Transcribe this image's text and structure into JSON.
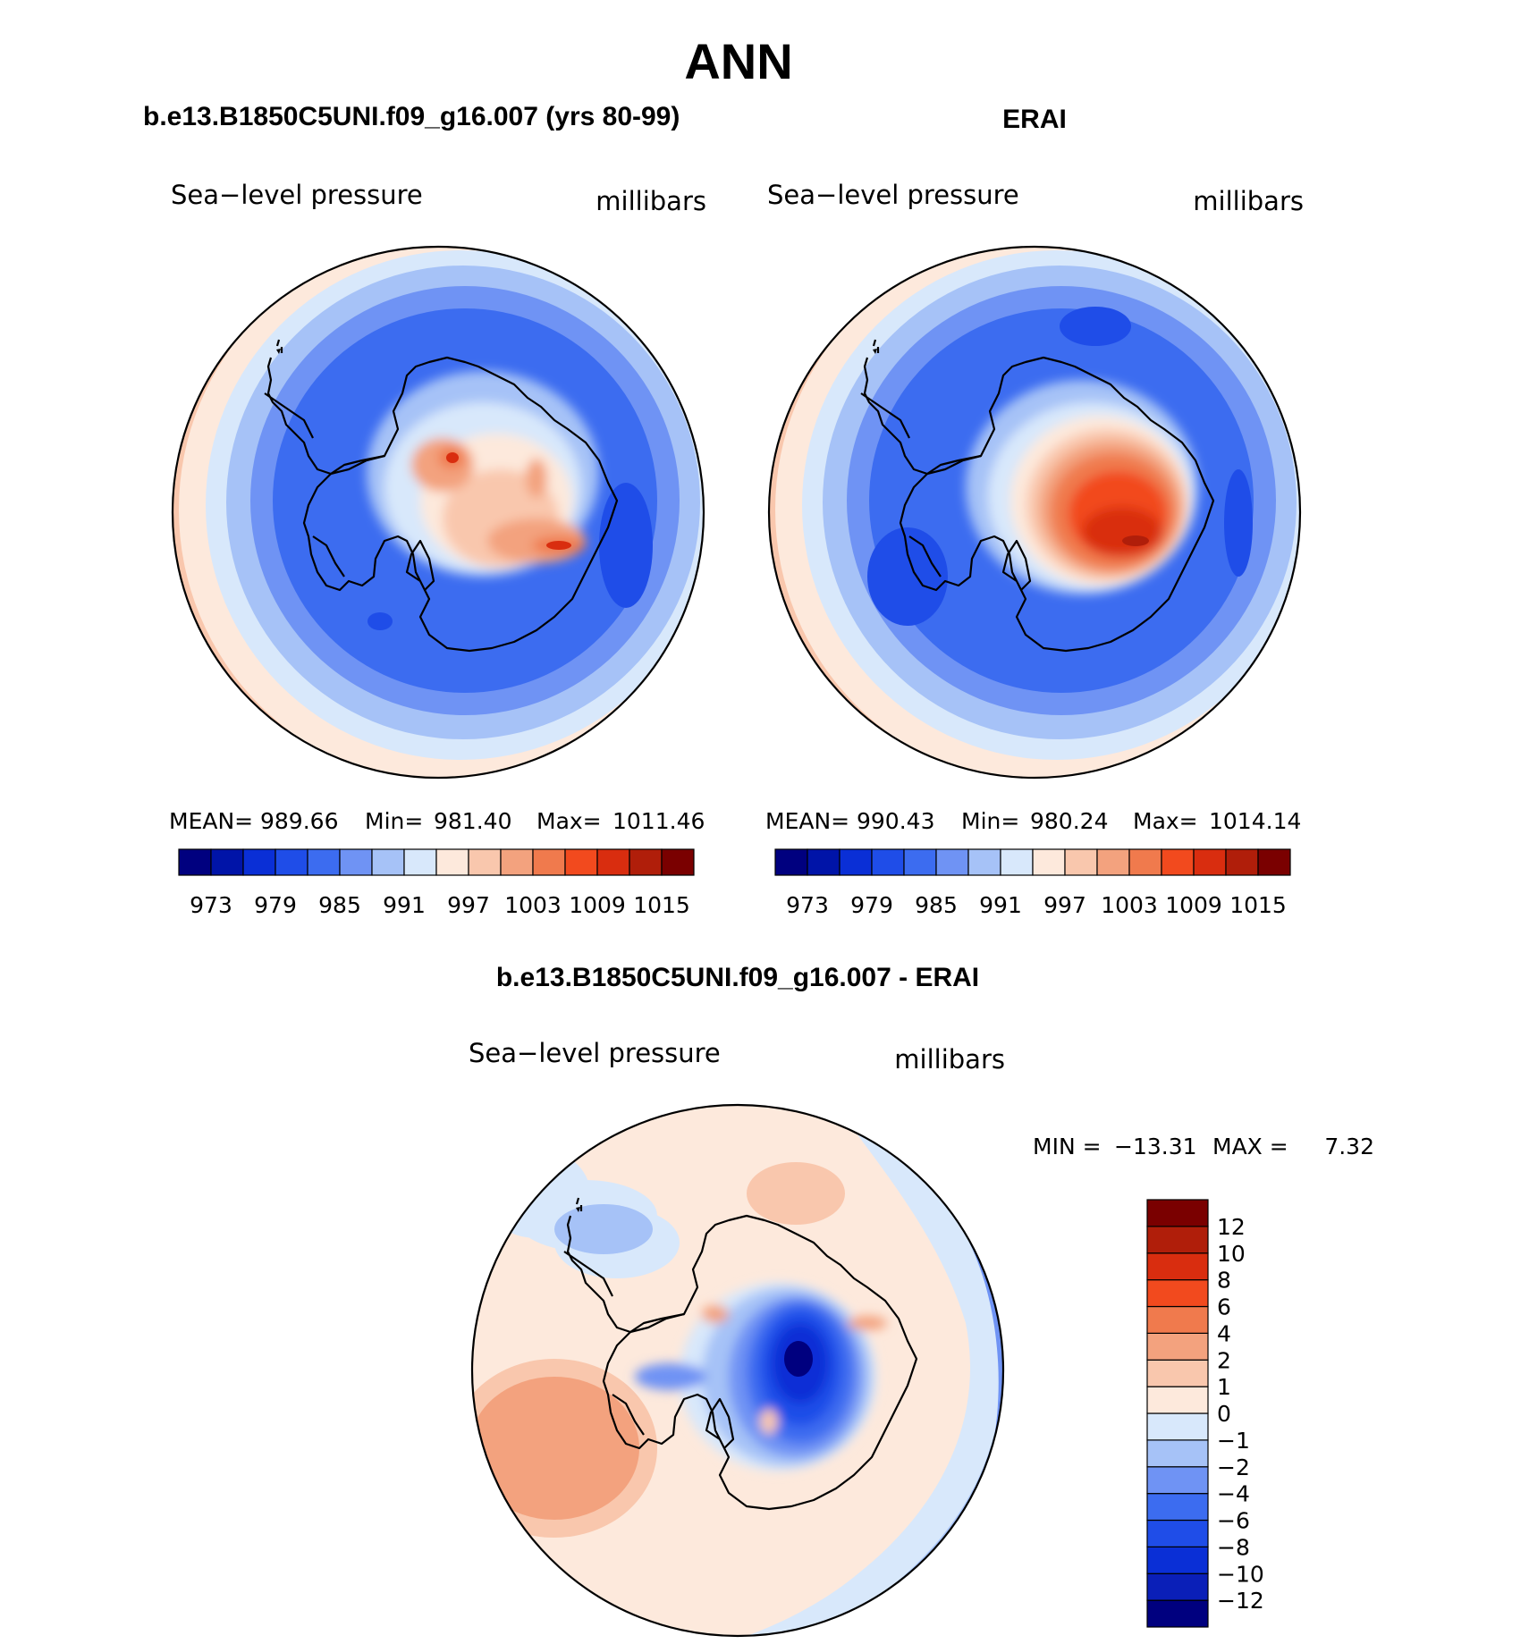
{
  "figure": {
    "season": "ANN",
    "panels": [
      {
        "id": "model",
        "header": "b.e13.B1850C5UNI.f09_g16.007 (yrs 80-99)",
        "field": "Sea−level pressure",
        "units": "millibars",
        "stats": {
          "mean_label": "MEAN=",
          "mean": "989.66",
          "min_label": "Min=",
          "min": "981.40",
          "max_label": "Max=",
          "max": "1011.46"
        }
      },
      {
        "id": "obs",
        "header": "ERAI",
        "field": "Sea−level pressure",
        "units": "millibars",
        "stats": {
          "mean_label": "MEAN=",
          "mean": "990.43",
          "min_label": "Min=",
          "min": "980.24",
          "max_label": "Max=",
          "max": "1014.14"
        }
      }
    ],
    "difference": {
      "header": "b.e13.B1850C5UNI.f09_g16.007 - ERAI",
      "field": "Sea−level pressure",
      "units": "millibars",
      "min_label": "MIN =",
      "min": "−13.31",
      "max_label": "MAX =",
      "max": "7.32"
    }
  },
  "colorbars": {
    "absolute": {
      "colors": [
        "#00007f",
        "#0014a8",
        "#0a2fd6",
        "#1f4de8",
        "#3c6cf0",
        "#6f93f4",
        "#a6c2f7",
        "#d8e8fb",
        "#fde9dc",
        "#f9c7ad",
        "#f3a27e",
        "#f07a4d",
        "#f24a1e",
        "#d92d0f",
        "#b01e0a",
        "#7a0000"
      ],
      "tick_labels": [
        "973",
        "979",
        "985",
        "991",
        "997",
        "1003",
        "1009",
        "1015"
      ]
    },
    "difference": {
      "colors": [
        "#00007f",
        "#0a1fb8",
        "#0a2fd6",
        "#1f4de8",
        "#3c6cf0",
        "#6f93f4",
        "#a6c2f7",
        "#d8e8fb",
        "#fde9dc",
        "#f9c7ad",
        "#f3a27e",
        "#f07a4d",
        "#f24a1e",
        "#d92d0f",
        "#b01e0a",
        "#7a0000"
      ],
      "tick_labels": [
        "−12",
        "−10",
        "−8",
        "−6",
        "−4",
        "−2",
        "−1",
        "0",
        "1",
        "2",
        "4",
        "6",
        "8",
        "10",
        "12"
      ]
    }
  },
  "map_colors": {
    "coast": "#000000",
    "abs_bg": "#a6c2f7",
    "diff_bg": "#fde9dc"
  }
}
